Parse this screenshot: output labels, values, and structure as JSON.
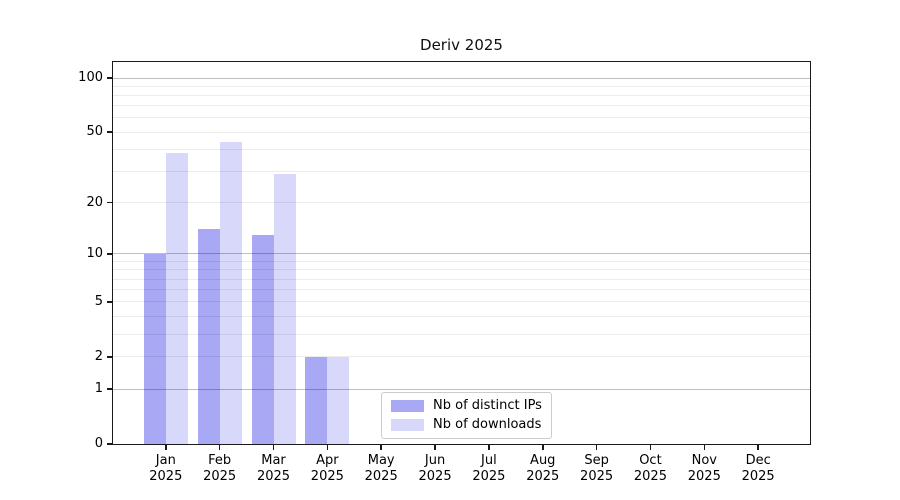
{
  "chart_data": {
    "type": "bar",
    "title": "Deriv 2025",
    "months": [
      "Jan",
      "Feb",
      "Mar",
      "Apr",
      "May",
      "Jun",
      "Jul",
      "Aug",
      "Sep",
      "Oct",
      "Nov",
      "Dec"
    ],
    "year": "2025",
    "series": [
      {
        "name": "Nb of distinct IPs",
        "color": "#a8a8f5",
        "values": [
          10,
          14,
          13,
          2,
          0,
          0,
          0,
          0,
          0,
          0,
          0,
          0
        ]
      },
      {
        "name": "Nb of downloads",
        "color": "#d8d8fa",
        "values": [
          38,
          44,
          29,
          2,
          0,
          0,
          0,
          0,
          0,
          0,
          0,
          0
        ]
      }
    ],
    "yscale": "log10(1+x)",
    "ylim": [
      0,
      100
    ],
    "y_tick_values": [
      100,
      50,
      20,
      10,
      5,
      2,
      1,
      0
    ],
    "y_tick_labels": [
      "100",
      "50",
      "20",
      "10",
      "5",
      "2",
      "1",
      "0"
    ],
    "major_grid_values": [
      1,
      10,
      100
    ],
    "minor_grid_values": [
      2,
      3,
      4,
      5,
      6,
      7,
      8,
      9,
      20,
      30,
      40,
      50,
      60,
      70,
      80,
      90
    ],
    "grid": "on, drawn above bars",
    "legend_position": "lower center-left inside plot"
  }
}
